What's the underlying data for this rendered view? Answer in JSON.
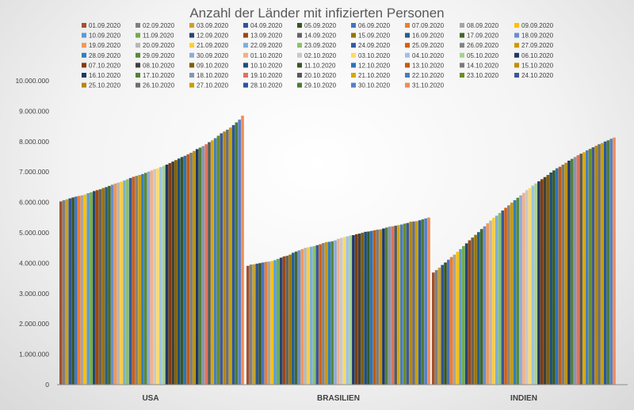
{
  "chart_data": {
    "type": "bar",
    "title": "Anzahl der Länder mit infizierten Personen",
    "xlabel": "",
    "ylabel": "",
    "ylim": [
      0,
      10000000
    ],
    "y_ticks": [
      "0",
      "1.000.000",
      "2.000.000",
      "3.000.000",
      "4.000.000",
      "5.000.000",
      "6.000.000",
      "7.000.000",
      "8.000.000",
      "9.000.000",
      "10.000.000"
    ],
    "categories": [
      "USA",
      "BRASILIEN",
      "INDIEN"
    ],
    "legend_position": "top",
    "grid": false,
    "series_names": [
      "01.09.2020",
      "02.09.2020",
      "03.09.2020",
      "04.09.2020",
      "05.09.2020",
      "06.09.2020",
      "07.09.2020",
      "08.09.2020",
      "09.09.2020",
      "10.09.2020",
      "11.09.2020",
      "12.09.2020",
      "13.09.2020",
      "14.09.2020",
      "15.09.2020",
      "16.09.2020",
      "17.09.2020",
      "18.09.2020",
      "19.09.2020",
      "20.09.2020",
      "21.09.2020",
      "22.09.2020",
      "23.09.2020",
      "24.09.2020",
      "25.09.2020",
      "26.09.2020",
      "27.09.2020",
      "28.09.2020",
      "29.09.2020",
      "30.09.2020",
      "01.10.2020",
      "02.10.2020",
      "03.10.2020",
      "04.10.2020",
      "05.10.2020",
      "06.10.2020",
      "07.10.2020",
      "08.10.2020",
      "09.10.2020",
      "10.10.2020",
      "11.10.2020",
      "12.10.2020",
      "13.10.2020",
      "14.10.2020",
      "15.10.2020",
      "16.10.2020",
      "17.10.2020",
      "18.10.2020",
      "19.10.2020",
      "20.10.2020",
      "21.10.2020",
      "22.10.2020",
      "23.10.2020",
      "24.10.2020",
      "25.10.2020",
      "26.10.2020",
      "27.10.2020",
      "28.10.2020",
      "29.10.2020",
      "30.10.2020",
      "31.10.2020"
    ],
    "series_colors": [
      "#a0522d",
      "#808080",
      "#c9a227",
      "#2f5597",
      "#375623",
      "#4472c4",
      "#ed7d31",
      "#a5a5a5",
      "#ffc000",
      "#5b9bd5",
      "#70ad47",
      "#264478",
      "#9e480e",
      "#636363",
      "#997300",
      "#255e91",
      "#43682b",
      "#698ed0",
      "#f1975a",
      "#b7b7b7",
      "#ffcd33",
      "#7cafdd",
      "#8cc168",
      "#335aa1",
      "#d26012",
      "#848484",
      "#cc9a00",
      "#327dc2",
      "#5a8a39",
      "#8faadc",
      "#f4b183",
      "#c9c9c9",
      "#ffd966",
      "#9dc3e6",
      "#a9d18e",
      "#1f3864",
      "#843c0c",
      "#404040",
      "#7f6000",
      "#1f4e79",
      "#385723",
      "#2e75b6",
      "#c55a11",
      "#7b7b7b",
      "#bf9000",
      "#203864",
      "#548235",
      "#8497b0",
      "#e2725b",
      "#595959",
      "#d6a800",
      "#4a7ebb",
      "#6b8e23",
      "#3c5a99",
      "#b8860b",
      "#6e6e6e",
      "#c8a000",
      "#2b579a",
      "#4e7d32",
      "#5a7fc9",
      "#f08c55"
    ],
    "usa_values": [
      6030000,
      6070000,
      6100000,
      6130000,
      6160000,
      6190000,
      6210000,
      6230000,
      6260000,
      6300000,
      6330000,
      6370000,
      6400000,
      6430000,
      6470000,
      6500000,
      6540000,
      6580000,
      6620000,
      6650000,
      6680000,
      6720000,
      6760000,
      6800000,
      6840000,
      6870000,
      6900000,
      6930000,
      6970000,
      7010000,
      7050000,
      7090000,
      7120000,
      7160000,
      7200000,
      7240000,
      7290000,
      7340000,
      7390000,
      7440000,
      7490000,
      7530000,
      7580000,
      7630000,
      7690000,
      7750000,
      7800000,
      7850000,
      7910000,
      7980000,
      8040000,
      8110000,
      8190000,
      8270000,
      8330000,
      8390000,
      8460000,
      8540000,
      8630000,
      8720000,
      8850000
    ],
    "brasilien_values": [
      3910000,
      3950000,
      3960000,
      3980000,
      4000000,
      4020000,
      4040000,
      4050000,
      4070000,
      4100000,
      4140000,
      4180000,
      4220000,
      4240000,
      4280000,
      4340000,
      4380000,
      4420000,
      4460000,
      4500000,
      4520000,
      4540000,
      4560000,
      4590000,
      4620000,
      4660000,
      4690000,
      4700000,
      4720000,
      4750000,
      4800000,
      4830000,
      4860000,
      4880000,
      4910000,
      4920000,
      4950000,
      4970000,
      5000000,
      5030000,
      5040000,
      5060000,
      5080000,
      5100000,
      5110000,
      5140000,
      5170000,
      5200000,
      5210000,
      5230000,
      5250000,
      5270000,
      5300000,
      5320000,
      5360000,
      5370000,
      5380000,
      5410000,
      5440000,
      5470000,
      5500000
    ],
    "indien_values": [
      3690000,
      3770000,
      3850000,
      3940000,
      4020000,
      4110000,
      4200000,
      4280000,
      4370000,
      4460000,
      4560000,
      4650000,
      4750000,
      4840000,
      4930000,
      5020000,
      5120000,
      5210000,
      5310000,
      5400000,
      5490000,
      5560000,
      5650000,
      5730000,
      5820000,
      5900000,
      5990000,
      6070000,
      6150000,
      6230000,
      6310000,
      6400000,
      6470000,
      6550000,
      6620000,
      6690000,
      6760000,
      6830000,
      6900000,
      6980000,
      7050000,
      7120000,
      7170000,
      7240000,
      7300000,
      7370000,
      7430000,
      7490000,
      7550000,
      7600000,
      7650000,
      7710000,
      7760000,
      7810000,
      7860000,
      7910000,
      7950000,
      8000000,
      8040000,
      8090000,
      8130000
    ]
  }
}
